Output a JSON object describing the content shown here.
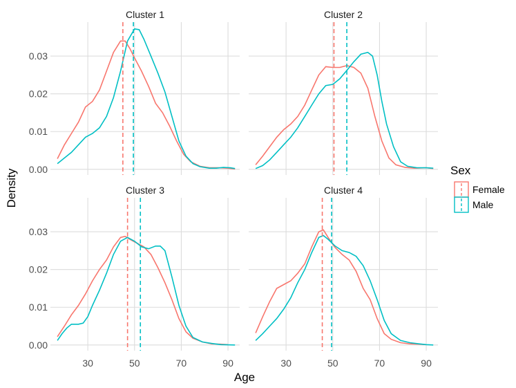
{
  "chart_data": {
    "type": "line",
    "title": "",
    "xlabel": "Age",
    "ylabel": "Density",
    "xlim": [
      14,
      95
    ],
    "ylim": [
      -0.0015,
      0.039
    ],
    "x_ticks": [
      30,
      50,
      70,
      90
    ],
    "x_tick_labels": [
      "30",
      "50",
      "70",
      "90"
    ],
    "y_ticks": [
      0.0,
      0.01,
      0.02,
      0.03
    ],
    "y_tick_labels": [
      "0.00",
      "0.01",
      "0.02",
      "0.03"
    ],
    "grid": true,
    "legend": {
      "title": "Sex",
      "position": "right",
      "entries": [
        "Female",
        "Male"
      ]
    },
    "colors": {
      "Female": "#F8766D",
      "Male": "#00BFC4"
    },
    "panels": [
      {
        "title": "Cluster 1",
        "series": [
          {
            "name": "Female",
            "mean": 45,
            "points": [
              [
                17,
                0.0028
              ],
              [
                20,
                0.0065
              ],
              [
                23,
                0.0095
              ],
              [
                26,
                0.0125
              ],
              [
                29,
                0.0165
              ],
              [
                32,
                0.018
              ],
              [
                35,
                0.021
              ],
              [
                38,
                0.026
              ],
              [
                41,
                0.031
              ],
              [
                44,
                0.034
              ],
              [
                46,
                0.034
              ],
              [
                48,
                0.032
              ],
              [
                50,
                0.0295
              ],
              [
                53,
                0.026
              ],
              [
                56,
                0.022
              ],
              [
                59,
                0.0175
              ],
              [
                62,
                0.015
              ],
              [
                65,
                0.0115
              ],
              [
                68,
                0.0075
              ],
              [
                71,
                0.004
              ],
              [
                74,
                0.002
              ],
              [
                78,
                0.0008
              ],
              [
                82,
                0.0004
              ],
              [
                86,
                0.0004
              ],
              [
                90,
                0.0003
              ],
              [
                93,
                0.0001
              ]
            ]
          },
          {
            "name": "Male",
            "mean": 49.5,
            "points": [
              [
                17,
                0.0015
              ],
              [
                20,
                0.003
              ],
              [
                23,
                0.0045
              ],
              [
                26,
                0.0065
              ],
              [
                29,
                0.0085
              ],
              [
                32,
                0.0095
              ],
              [
                35,
                0.011
              ],
              [
                38,
                0.014
              ],
              [
                41,
                0.019
              ],
              [
                44,
                0.026
              ],
              [
                47,
                0.034
              ],
              [
                50,
                0.0372
              ],
              [
                52,
                0.037
              ],
              [
                54,
                0.0345
              ],
              [
                57,
                0.03
              ],
              [
                60,
                0.0255
              ],
              [
                63,
                0.0205
              ],
              [
                66,
                0.014
              ],
              [
                69,
                0.0075
              ],
              [
                72,
                0.0035
              ],
              [
                75,
                0.0015
              ],
              [
                78,
                0.0007
              ],
              [
                82,
                0.0003
              ],
              [
                85,
                0.0003
              ],
              [
                88,
                0.0005
              ],
              [
                91,
                0.0004
              ],
              [
                93,
                0.0002
              ]
            ]
          }
        ]
      },
      {
        "title": "Cluster 2",
        "series": [
          {
            "name": "Female",
            "mean": 50.5,
            "points": [
              [
                17,
                0.0012
              ],
              [
                20,
                0.0035
              ],
              [
                23,
                0.006
              ],
              [
                26,
                0.0085
              ],
              [
                29,
                0.0105
              ],
              [
                32,
                0.012
              ],
              [
                35,
                0.014
              ],
              [
                38,
                0.017
              ],
              [
                41,
                0.021
              ],
              [
                44,
                0.025
              ],
              [
                47,
                0.0272
              ],
              [
                50,
                0.027
              ],
              [
                53,
                0.027
              ],
              [
                56,
                0.0275
              ],
              [
                59,
                0.027
              ],
              [
                62,
                0.0255
              ],
              [
                65,
                0.0215
              ],
              [
                68,
                0.014
              ],
              [
                71,
                0.0075
              ],
              [
                74,
                0.003
              ],
              [
                77,
                0.0012
              ],
              [
                81,
                0.0005
              ],
              [
                85,
                0.0003
              ],
              [
                90,
                0.0004
              ],
              [
                93,
                0.0002
              ]
            ]
          },
          {
            "name": "Male",
            "mean": 56,
            "points": [
              [
                17,
                0.0002
              ],
              [
                20,
                0.001
              ],
              [
                23,
                0.0025
              ],
              [
                26,
                0.0045
              ],
              [
                29,
                0.0065
              ],
              [
                32,
                0.0085
              ],
              [
                35,
                0.011
              ],
              [
                38,
                0.014
              ],
              [
                41,
                0.017
              ],
              [
                44,
                0.02
              ],
              [
                47,
                0.0222
              ],
              [
                50,
                0.0225
              ],
              [
                53,
                0.024
              ],
              [
                56,
                0.0262
              ],
              [
                59,
                0.0285
              ],
              [
                62,
                0.0305
              ],
              [
                65,
                0.031
              ],
              [
                67,
                0.03
              ],
              [
                69,
                0.025
              ],
              [
                71,
                0.018
              ],
              [
                73,
                0.012
              ],
              [
                76,
                0.006
              ],
              [
                79,
                0.002
              ],
              [
                82,
                0.0008
              ],
              [
                86,
                0.0004
              ],
              [
                90,
                0.0004
              ],
              [
                93,
                0.0003
              ]
            ]
          }
        ]
      },
      {
        "title": "Cluster 3",
        "series": [
          {
            "name": "Female",
            "mean": 47,
            "points": [
              [
                17,
                0.0022
              ],
              [
                20,
                0.005
              ],
              [
                23,
                0.008
              ],
              [
                26,
                0.0105
              ],
              [
                29,
                0.0135
              ],
              [
                32,
                0.017
              ],
              [
                35,
                0.02
              ],
              [
                38,
                0.0225
              ],
              [
                41,
                0.026
              ],
              [
                44,
                0.0285
              ],
              [
                46,
                0.0288
              ],
              [
                48,
                0.028
              ],
              [
                51,
                0.027
              ],
              [
                54,
                0.026
              ],
              [
                57,
                0.024
              ],
              [
                60,
                0.0205
              ],
              [
                63,
                0.0165
              ],
              [
                66,
                0.012
              ],
              [
                69,
                0.007
              ],
              [
                72,
                0.0035
              ],
              [
                75,
                0.0018
              ],
              [
                79,
                0.0008
              ],
              [
                83,
                0.0003
              ],
              [
                87,
                0.0002
              ],
              [
                90,
                0.0001
              ]
            ]
          },
          {
            "name": "Male",
            "mean": 52.5,
            "points": [
              [
                17,
                0.0012
              ],
              [
                19,
                0.003
              ],
              [
                21,
                0.0045
              ],
              [
                23,
                0.0055
              ],
              [
                26,
                0.0055
              ],
              [
                28,
                0.0058
              ],
              [
                30,
                0.0075
              ],
              [
                32,
                0.0105
              ],
              [
                35,
                0.0145
              ],
              [
                38,
                0.019
              ],
              [
                41,
                0.024
              ],
              [
                44,
                0.0275
              ],
              [
                47,
                0.0285
              ],
              [
                50,
                0.0275
              ],
              [
                53,
                0.026
              ],
              [
                56,
                0.0255
              ],
              [
                59,
                0.0262
              ],
              [
                61,
                0.0262
              ],
              [
                63,
                0.025
              ],
              [
                66,
                0.018
              ],
              [
                69,
                0.0105
              ],
              [
                72,
                0.005
              ],
              [
                75,
                0.002
              ],
              [
                79,
                0.0008
              ],
              [
                83,
                0.0004
              ],
              [
                87,
                0.0001
              ],
              [
                93,
                0.0
              ]
            ]
          }
        ]
      },
      {
        "title": "Cluster 4",
        "series": [
          {
            "name": "Female",
            "mean": 45.5,
            "points": [
              [
                17,
                0.0032
              ],
              [
                20,
                0.0075
              ],
              [
                23,
                0.0115
              ],
              [
                26,
                0.015
              ],
              [
                29,
                0.016
              ],
              [
                32,
                0.017
              ],
              [
                35,
                0.019
              ],
              [
                38,
                0.0215
              ],
              [
                41,
                0.026
              ],
              [
                44,
                0.03
              ],
              [
                46,
                0.0305
              ],
              [
                48,
                0.0285
              ],
              [
                51,
                0.0258
              ],
              [
                54,
                0.024
              ],
              [
                57,
                0.0225
              ],
              [
                60,
                0.0195
              ],
              [
                63,
                0.015
              ],
              [
                66,
                0.012
              ],
              [
                69,
                0.007
              ],
              [
                72,
                0.003
              ],
              [
                75,
                0.0015
              ],
              [
                79,
                0.0006
              ],
              [
                83,
                0.0003
              ],
              [
                87,
                0.0002
              ],
              [
                90,
                0.0001
              ]
            ]
          },
          {
            "name": "Male",
            "mean": 49.5,
            "points": [
              [
                17,
                0.0012
              ],
              [
                20,
                0.003
              ],
              [
                23,
                0.005
              ],
              [
                26,
                0.007
              ],
              [
                29,
                0.0095
              ],
              [
                32,
                0.0125
              ],
              [
                35,
                0.0165
              ],
              [
                38,
                0.02
              ],
              [
                41,
                0.0245
              ],
              [
                44,
                0.0285
              ],
              [
                46,
                0.029
              ],
              [
                48,
                0.028
              ],
              [
                51,
                0.0262
              ],
              [
                54,
                0.025
              ],
              [
                57,
                0.0245
              ],
              [
                60,
                0.0235
              ],
              [
                63,
                0.021
              ],
              [
                66,
                0.017
              ],
              [
                69,
                0.012
              ],
              [
                72,
                0.0065
              ],
              [
                75,
                0.003
              ],
              [
                79,
                0.0012
              ],
              [
                83,
                0.0006
              ],
              [
                87,
                0.0003
              ],
              [
                90,
                0.0001
              ],
              [
                93,
                0.0
              ]
            ]
          }
        ]
      }
    ]
  }
}
